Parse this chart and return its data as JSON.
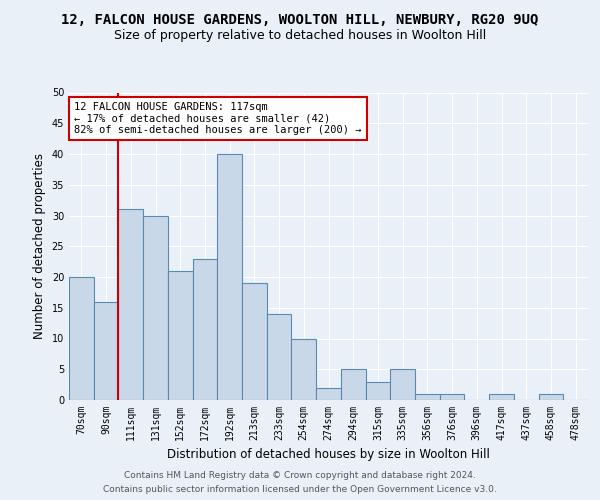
{
  "title_line1": "12, FALCON HOUSE GARDENS, WOOLTON HILL, NEWBURY, RG20 9UQ",
  "title_line2": "Size of property relative to detached houses in Woolton Hill",
  "xlabel": "Distribution of detached houses by size in Woolton Hill",
  "ylabel": "Number of detached properties",
  "bar_labels": [
    "70sqm",
    "90sqm",
    "111sqm",
    "131sqm",
    "152sqm",
    "172sqm",
    "192sqm",
    "213sqm",
    "233sqm",
    "254sqm",
    "274sqm",
    "294sqm",
    "315sqm",
    "335sqm",
    "356sqm",
    "376sqm",
    "396sqm",
    "417sqm",
    "437sqm",
    "458sqm",
    "478sqm"
  ],
  "bar_values": [
    20,
    16,
    31,
    30,
    21,
    23,
    40,
    19,
    14,
    10,
    2,
    5,
    3,
    5,
    1,
    1,
    0,
    1,
    0,
    1,
    0
  ],
  "bar_color": "#c8d8e8",
  "bar_edge_color": "#5a8ab0",
  "bar_edge_width": 0.8,
  "vline_x": 1.5,
  "vline_color": "#cc0000",
  "annotation_text": "12 FALCON HOUSE GARDENS: 117sqm\n← 17% of detached houses are smaller (42)\n82% of semi-detached houses are larger (200) →",
  "annotation_box_color": "#ffffff",
  "annotation_box_edge": "#cc0000",
  "ylim": [
    0,
    50
  ],
  "yticks": [
    0,
    5,
    10,
    15,
    20,
    25,
    30,
    35,
    40,
    45,
    50
  ],
  "bg_color": "#eaf0f8",
  "plot_bg_color": "#eaf0f8",
  "footer_line1": "Contains HM Land Registry data © Crown copyright and database right 2024.",
  "footer_line2": "Contains public sector information licensed under the Open Government Licence v3.0.",
  "title1_fontsize": 10,
  "title2_fontsize": 9,
  "xlabel_fontsize": 8.5,
  "ylabel_fontsize": 8.5,
  "tick_fontsize": 7,
  "footer_fontsize": 6.5,
  "ann_fontsize": 7.5
}
